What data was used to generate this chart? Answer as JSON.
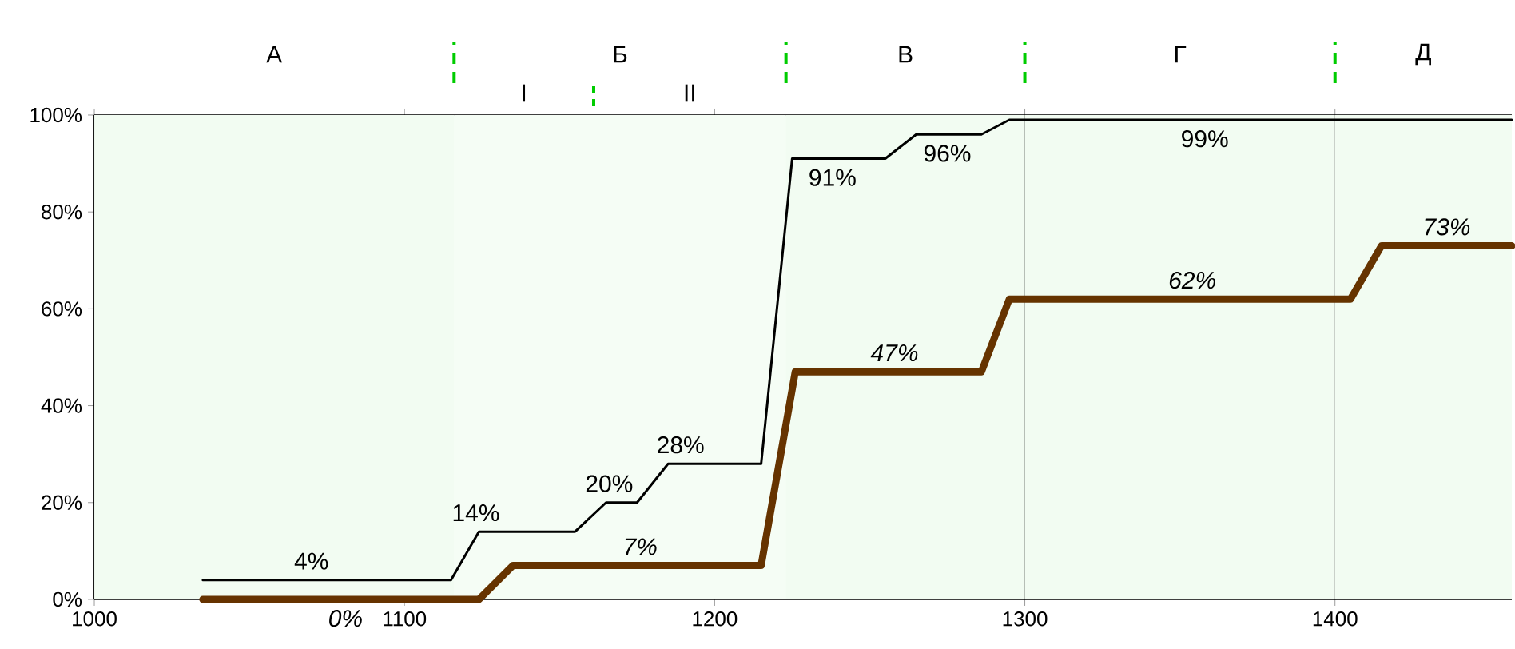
{
  "chart_data": {
    "type": "line",
    "xlim": [
      1000,
      1457
    ],
    "xticks": [
      1000,
      1100,
      1200,
      1300,
      1400
    ],
    "ylim": [
      0,
      100
    ],
    "yticks": [
      {
        "value": 0,
        "label": "0%"
      },
      {
        "value": 20,
        "label": "20%"
      },
      {
        "value": 40,
        "label": "40%"
      },
      {
        "value": 60,
        "label": "60%"
      },
      {
        "value": 80,
        "label": "80%"
      },
      {
        "value": 100,
        "label": "100%"
      }
    ],
    "bands": [
      {
        "axis": "x",
        "from": 1000,
        "to": 1116,
        "label": "А"
      },
      {
        "axis": "x",
        "from": 1116,
        "to": 1223,
        "label": "Б"
      },
      {
        "axis": "x",
        "from": 1116,
        "to": 1161,
        "label": "I"
      },
      {
        "axis": "x",
        "from": 1161,
        "to": 1223,
        "label": "II"
      },
      {
        "axis": "x",
        "from": 1223,
        "to": 1300,
        "label": "В"
      },
      {
        "axis": "x",
        "from": 1300,
        "to": 1400,
        "label": "Г"
      },
      {
        "axis": "x",
        "from": 1400,
        "to": 1457,
        "label": "Д"
      }
    ],
    "grid": "x",
    "marker": "none",
    "line_style": "solid",
    "series": [
      {
        "color": "#000000",
        "x": [
          1035,
          1115,
          1124,
          1155,
          1165,
          1175,
          1185,
          1215,
          1225,
          1255,
          1265,
          1286,
          1295,
          1457
        ],
        "values": [
          4,
          4,
          14,
          14,
          20,
          20,
          28,
          28,
          91,
          91,
          96,
          96,
          99,
          99
        ]
      },
      {
        "color": "#663300",
        "x": [
          1035,
          1124,
          1135,
          1215,
          1226,
          1286,
          1295,
          1405,
          1415,
          1457
        ],
        "values": [
          0,
          0,
          7,
          7,
          47,
          47,
          62,
          62,
          73,
          73
        ]
      }
    ],
    "annotations": [
      {
        "text": "4%",
        "x": 1070,
        "y": 4
      },
      {
        "text": "14%",
        "x": 1123,
        "y": 14
      },
      {
        "text": "20%",
        "x": 1166,
        "y": 20
      },
      {
        "text": "28%",
        "x": 1189,
        "y": 28
      },
      {
        "text": "91%",
        "x": 1238,
        "y": 91
      },
      {
        "text": "96%",
        "x": 1275,
        "y": 96
      },
      {
        "text": "99%",
        "x": 1358,
        "y": 99
      },
      {
        "text": "0%",
        "x": 1081,
        "y": 0
      },
      {
        "text": "7%",
        "x": 1176,
        "y": 7
      },
      {
        "text": "47%",
        "x": 1258,
        "y": 47
      },
      {
        "text": "62%",
        "x": 1354,
        "y": 62
      },
      {
        "text": "73%",
        "x": 1436,
        "y": 73
      }
    ]
  }
}
